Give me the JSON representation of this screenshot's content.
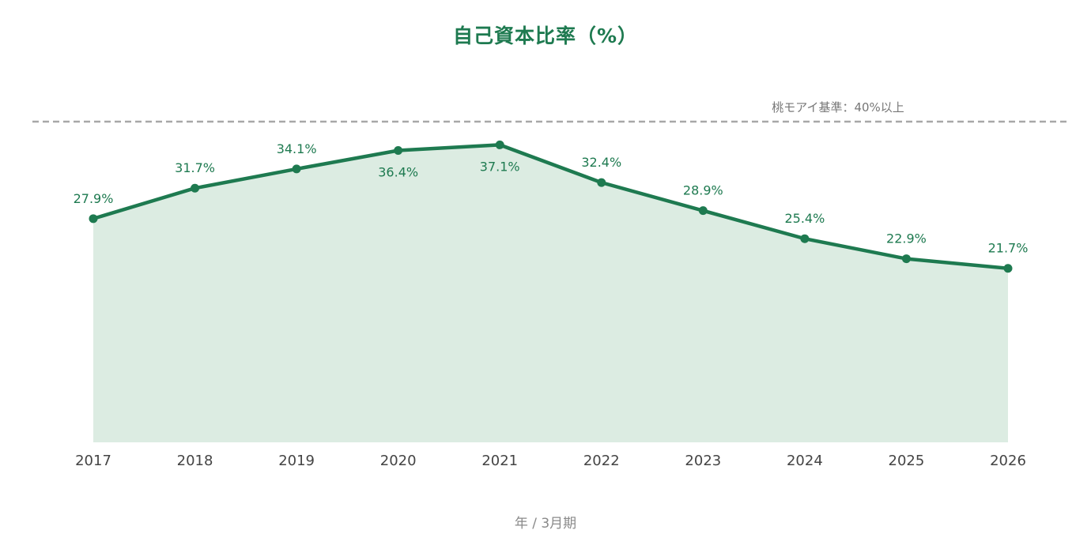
{
  "chart_data": {
    "type": "area",
    "title": "自己資本比率（%）",
    "xlabel": "年 / 3月期",
    "ylabel": "",
    "categories": [
      "2017",
      "2018",
      "2019",
      "2020",
      "2021",
      "2022",
      "2023",
      "2024",
      "2025",
      "2026"
    ],
    "series": [
      {
        "values": [
          27.9,
          31.7,
          34.1,
          36.4,
          37.1,
          32.4,
          28.9,
          25.4,
          22.9,
          21.7
        ],
        "data_labels": [
          "27.9%",
          "31.7%",
          "34.1%",
          "36.4%",
          "37.1%",
          "32.4%",
          "28.9%",
          "25.4%",
          "22.9%",
          "21.7%"
        ]
      }
    ],
    "reference_line": {
      "value": 40,
      "label": "桃モアイ基準：40%以上",
      "style": "dashed",
      "color": "#a8a8a8"
    },
    "ylim": [
      0,
      40
    ],
    "grid": false,
    "legend": "none",
    "colors": {
      "line": "#1e7a50",
      "fill": "#dcece2",
      "title": "#1e7a50",
      "tick_text": "#444444",
      "axis_title": "#8a8a8a"
    }
  }
}
